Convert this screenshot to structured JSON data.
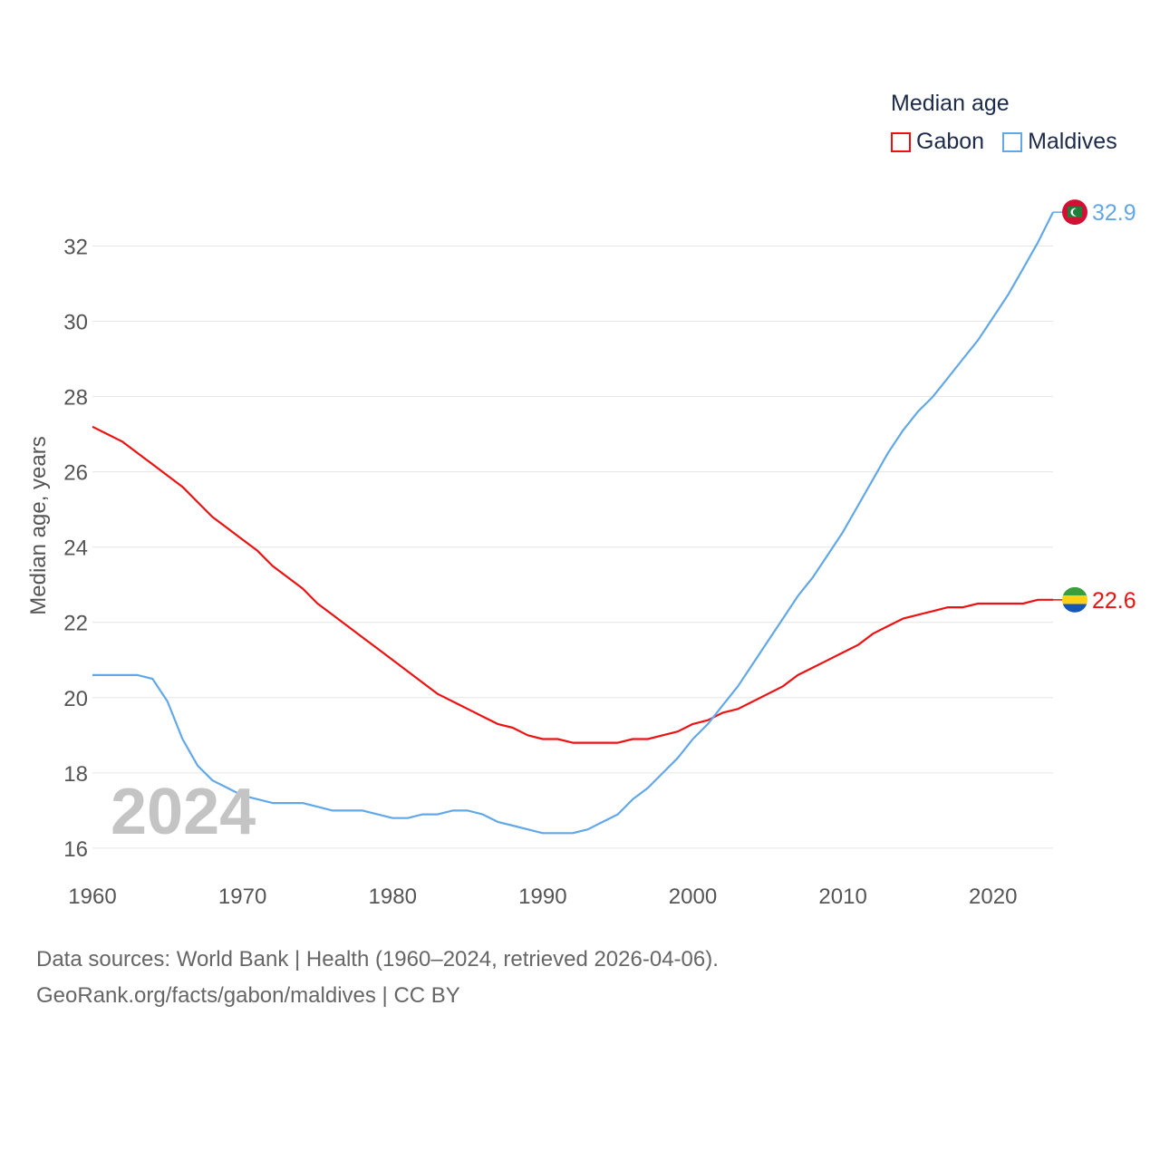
{
  "chart_data": {
    "type": "line",
    "title": "Median age",
    "ylabel": "Median age, years",
    "xlabel": "",
    "xlim": [
      1960,
      2024
    ],
    "ylim": [
      15.3,
      33.6
    ],
    "y_ticks": [
      16,
      18,
      20,
      22,
      24,
      26,
      28,
      30,
      32
    ],
    "x_ticks": [
      1960,
      1970,
      1980,
      1990,
      2000,
      2010,
      2020
    ],
    "grid": true,
    "legend_position": "top-right",
    "year_label": "2024",
    "x": [
      1960,
      1961,
      1962,
      1963,
      1964,
      1965,
      1966,
      1967,
      1968,
      1969,
      1970,
      1971,
      1972,
      1973,
      1974,
      1975,
      1976,
      1977,
      1978,
      1979,
      1980,
      1981,
      1982,
      1983,
      1984,
      1985,
      1986,
      1987,
      1988,
      1989,
      1990,
      1991,
      1992,
      1993,
      1994,
      1995,
      1996,
      1997,
      1998,
      1999,
      2000,
      2001,
      2002,
      2003,
      2004,
      2005,
      2006,
      2007,
      2008,
      2009,
      2010,
      2011,
      2012,
      2013,
      2014,
      2015,
      2016,
      2017,
      2018,
      2019,
      2020,
      2021,
      2022,
      2023,
      2024
    ],
    "series": [
      {
        "name": "Gabon",
        "color": "#ee1111",
        "end_label": "22.6",
        "flag": "gabon-flag",
        "values": [
          27.2,
          27.0,
          26.8,
          26.5,
          26.2,
          25.9,
          25.6,
          25.2,
          24.8,
          24.5,
          24.2,
          23.9,
          23.5,
          23.2,
          22.9,
          22.5,
          22.2,
          21.9,
          21.6,
          21.3,
          21.0,
          20.7,
          20.4,
          20.1,
          19.9,
          19.7,
          19.5,
          19.3,
          19.2,
          19.0,
          18.9,
          18.9,
          18.8,
          18.8,
          18.8,
          18.8,
          18.9,
          18.9,
          19.0,
          19.1,
          19.3,
          19.4,
          19.6,
          19.7,
          19.9,
          20.1,
          20.3,
          20.6,
          20.8,
          21.0,
          21.2,
          21.4,
          21.7,
          21.9,
          22.1,
          22.2,
          22.3,
          22.4,
          22.4,
          22.5,
          22.5,
          22.5,
          22.5,
          22.6,
          22.6
        ]
      },
      {
        "name": "Maldives",
        "color": "#62a8e8",
        "end_label": "32.9",
        "flag": "maldives-flag",
        "values": [
          20.6,
          20.6,
          20.6,
          20.6,
          20.5,
          19.9,
          18.9,
          18.2,
          17.8,
          17.6,
          17.4,
          17.3,
          17.2,
          17.2,
          17.2,
          17.1,
          17.0,
          17.0,
          17.0,
          16.9,
          16.8,
          16.8,
          16.9,
          16.9,
          17.0,
          17.0,
          16.9,
          16.7,
          16.6,
          16.5,
          16.4,
          16.4,
          16.4,
          16.5,
          16.7,
          16.9,
          17.3,
          17.6,
          18.0,
          18.4,
          18.9,
          19.3,
          19.8,
          20.3,
          20.9,
          21.5,
          22.1,
          22.7,
          23.2,
          23.8,
          24.4,
          25.1,
          25.8,
          26.5,
          27.1,
          27.6,
          28.0,
          28.5,
          29.0,
          29.5,
          30.1,
          30.7,
          31.4,
          32.1,
          32.9
        ]
      }
    ]
  },
  "legend": {
    "title": "Median age",
    "items": [
      {
        "label": "Gabon",
        "color": "#ee1111"
      },
      {
        "label": "Maldives",
        "color": "#62a8e8"
      }
    ]
  },
  "footer": {
    "line1": "Data sources: World Bank | Health (1960–2024, retrieved 2026-04-06).",
    "line2": "GeoRank.org/facts/gabon/maldives | CC BY"
  }
}
